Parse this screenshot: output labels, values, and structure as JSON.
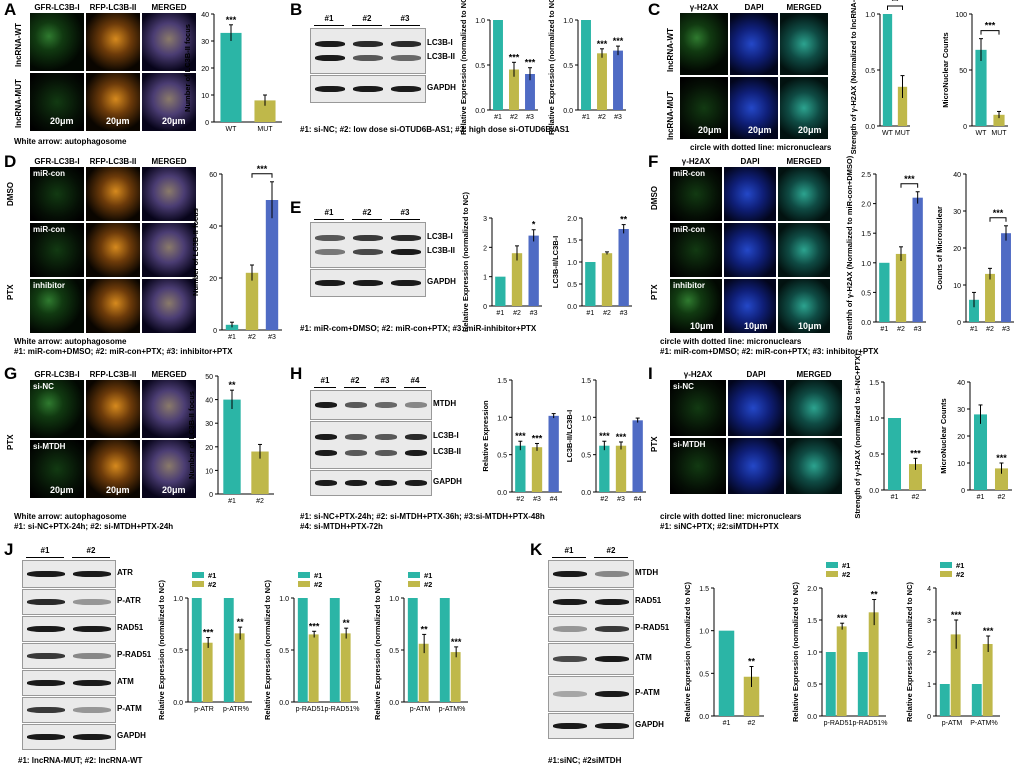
{
  "colors": {
    "teal": "#2bb5a6",
    "olive": "#bfb84a",
    "blue": "#4f6bc4",
    "axis": "#000"
  },
  "panels": {
    "A": {
      "letter": "A",
      "headers": [
        "GFR-LC3B-I",
        "RFP-LC3B-II",
        "MERGED"
      ],
      "rows": [
        "lncRNA-WT",
        "lncRNA-MUT"
      ],
      "scale": "20μm",
      "caption": "White arrow: autophagosome"
    },
    "B": {
      "letter": "B",
      "lanes": [
        "#1",
        "#2",
        "#3"
      ],
      "bands": [
        "LC3B-I",
        "LC3B-II",
        "GAPDH"
      ],
      "caption": "#1: si-NC; #2: low dose si-OTUD6B-AS1; #3: high dose si-OTUD6B-AS1"
    },
    "C": {
      "letter": "C",
      "headers": [
        "γ-H2AX",
        "DAPI",
        "MERGED"
      ],
      "rows": [
        "lncRNA-WT",
        "lncRNA-MUT"
      ],
      "scale": "20μm",
      "caption": "circle with dotted line: micronuclears"
    },
    "D": {
      "letter": "D",
      "headers": [
        "GFR-LC3B-I",
        "RFP-LC3B-II",
        "MERGED"
      ],
      "groups": [
        "DMSO",
        "PTX"
      ],
      "rows": [
        "miR-con",
        "miR-con",
        "inhibitor"
      ],
      "caption1": "White arrow: autophagosome",
      "caption2": "#1: miR-com+DMSO; #2: miR-con+PTX; #3: inhibitor+PTX"
    },
    "E": {
      "letter": "E",
      "lanes": [
        "#1",
        "#2",
        "#3"
      ],
      "bands": [
        "LC3B-I",
        "LC3B-II",
        "GAPDH"
      ],
      "caption": "#1: miR-com+DMSO; #2: miR-con+PTX; #3: miR-inhibitor+PTX"
    },
    "F": {
      "letter": "F",
      "headers": [
        "γ-H2AX",
        "DAPI",
        "MERGED"
      ],
      "groups": [
        "DMSO",
        "PTX"
      ],
      "rows": [
        "miR-con",
        "miR-con",
        "inhibitor"
      ],
      "scale": "10μm",
      "caption1": "circle with dotted line: micronuclears",
      "caption2": "#1: miR-com+DMSO; #2: miR-con+PTX; #3: inhibitor+PTX"
    },
    "G": {
      "letter": "G",
      "headers": [
        "GFR-LC3B-I",
        "RFP-LC3B-II",
        "MERGED"
      ],
      "group": "PTX",
      "rows": [
        "si-NC",
        "si-MTDH"
      ],
      "scale": "20μm",
      "caption1": "White arrow: autophagosome",
      "caption2": "#1: si-NC+PTX-24h; #2: si-MTDH+PTX-24h"
    },
    "H": {
      "letter": "H",
      "lanes": [
        "#1",
        "#2",
        "#3",
        "#4"
      ],
      "bands": [
        "MTDH",
        "LC3B-I",
        "LC3B-II",
        "GAPDH"
      ],
      "caption1": "#1: si-NC+PTX-24h; #2: si-MTDH+PTX-36h; #3:si-MTDH+PTX-48h",
      "caption2": "#4: si-MTDH+PTX-72h"
    },
    "I": {
      "letter": "I",
      "headers": [
        "γ-H2AX",
        "DAPI",
        "MERGED"
      ],
      "group": "PTX",
      "rows": [
        "si-NC",
        "si-MTDH"
      ],
      "caption1": "circle with dotted line: micronuclears",
      "caption2": "#1: siNC+PTX; #2:siMTDH+PTX"
    },
    "J": {
      "letter": "J",
      "lanes": [
        "#1",
        "#2"
      ],
      "bands": [
        "ATR",
        "P-ATR",
        "RAD51",
        "P-RAD51",
        "ATM",
        "P-ATM",
        "GAPDH"
      ],
      "caption": "#1: lncRNA-MUT; #2: lncRNA-WT"
    },
    "K": {
      "letter": "K",
      "lanes": [
        "#1",
        "#2"
      ],
      "bands": [
        "MTDH",
        "RAD51",
        "P-RAD51",
        "ATM",
        "P-ATM",
        "GAPDH"
      ],
      "caption": "#1:siNC; #2siMTDH"
    }
  },
  "chart_data": [
    {
      "id": "A1",
      "type": "bar",
      "categories": [
        "WT",
        "MUT"
      ],
      "values": [
        33,
        8
      ],
      "errors": [
        3,
        2
      ],
      "ylabel": "Number of LC3B-II focus",
      "ylim": [
        0,
        40
      ],
      "yticks": [
        0,
        10,
        20,
        30,
        40
      ],
      "sig": [
        {
          "text": "***",
          "over": 0
        }
      ]
    },
    {
      "id": "B1",
      "type": "bar",
      "categories": [
        "#1",
        "#2",
        "#3"
      ],
      "values": [
        1.0,
        0.45,
        0.4
      ],
      "errors": [
        0,
        0.08,
        0.07
      ],
      "ylabel": "Relative Expression (normalized to NC)",
      "ylim": [
        0,
        1.0
      ],
      "yticks": [
        0.0,
        0.5,
        1.0
      ],
      "sig": [
        {
          "text": "***",
          "over": 1
        },
        {
          "text": "***",
          "over": 2
        }
      ]
    },
    {
      "id": "B2",
      "type": "bar",
      "categories": [
        "#1",
        "#2",
        "#3"
      ],
      "values": [
        1.0,
        0.63,
        0.66
      ],
      "errors": [
        0,
        0.05,
        0.05
      ],
      "ylabel": "Relative Expression (normalized to NC)",
      "ylim": [
        0,
        1.0
      ],
      "yticks": [
        0.0,
        0.5,
        1.0
      ],
      "sig": [
        {
          "text": "***",
          "over": 1
        },
        {
          "text": "***",
          "over": 2
        }
      ]
    },
    {
      "id": "C1",
      "type": "bar",
      "categories": [
        "WT",
        "MUT"
      ],
      "values": [
        1.0,
        0.35
      ],
      "errors": [
        0,
        0.1
      ],
      "ylabel": "Strength of γ-H2AX (Normalized to lncRNA-WT)",
      "ylim": [
        0,
        1.0
      ],
      "yticks": [
        0.0,
        0.5,
        1.0
      ],
      "sig": [
        {
          "text": "**",
          "bracket": true
        }
      ]
    },
    {
      "id": "C2",
      "type": "bar",
      "categories": [
        "WT",
        "MUT"
      ],
      "values": [
        68,
        10
      ],
      "errors": [
        10,
        3
      ],
      "ylabel": "MicroNuclear Counts",
      "ylim": [
        0,
        100
      ],
      "yticks": [
        0,
        50,
        100
      ],
      "sig": [
        {
          "text": "***",
          "bracket": true
        }
      ]
    },
    {
      "id": "D1",
      "type": "bar",
      "categories": [
        "#1",
        "#2",
        "#3"
      ],
      "values": [
        2,
        22,
        50
      ],
      "errors": [
        1,
        3,
        7
      ],
      "ylabel": "Number of LC3B-II focus",
      "ylim": [
        0,
        60
      ],
      "yticks": [
        0,
        20,
        40,
        60
      ],
      "sig": [
        {
          "text": "***",
          "bracket": true,
          "from": 1,
          "to": 2
        }
      ]
    },
    {
      "id": "E1",
      "type": "bar",
      "categories": [
        "#1",
        "#2",
        "#3"
      ],
      "values": [
        1.0,
        1.8,
        2.4
      ],
      "errors": [
        0,
        0.25,
        0.2
      ],
      "ylabel": "Relative Expression (normalized to NC)",
      "ylim": [
        0,
        3
      ],
      "yticks": [
        0,
        1,
        2,
        3
      ],
      "sig": [
        {
          "text": "*",
          "over": 2
        }
      ]
    },
    {
      "id": "E2",
      "type": "bar",
      "categories": [
        "#1",
        "#2",
        "#3"
      ],
      "values": [
        1.0,
        1.2,
        1.75
      ],
      "errors": [
        0,
        0.03,
        0.1
      ],
      "ylabel": "LC3B-II/LC3B-I",
      "ylim": [
        0,
        2.0
      ],
      "yticks": [
        0.0,
        0.5,
        1.0,
        1.5,
        2.0
      ],
      "sig": [
        {
          "text": "**",
          "over": 2
        }
      ]
    },
    {
      "id": "F1",
      "type": "bar",
      "categories": [
        "#1",
        "#2",
        "#3"
      ],
      "values": [
        1.0,
        1.15,
        2.1
      ],
      "errors": [
        0,
        0.12,
        0.1
      ],
      "ylabel": "Strenthh of γ-H2AX (Normalized to miR-con+DMSO)",
      "ylim": [
        0,
        2.5
      ],
      "yticks": [
        0.0,
        0.5,
        1.0,
        1.5,
        2.0,
        2.5
      ],
      "sig": [
        {
          "text": "***",
          "bracket": true,
          "from": 1,
          "to": 2
        }
      ]
    },
    {
      "id": "F2",
      "type": "bar",
      "categories": [
        "#1",
        "#2",
        "#3"
      ],
      "values": [
        6,
        13,
        24
      ],
      "errors": [
        2,
        1.5,
        2
      ],
      "ylabel": "Counts of Micronuclear",
      "ylim": [
        0,
        40
      ],
      "yticks": [
        0,
        10,
        20,
        30,
        40
      ],
      "sig": [
        {
          "text": "***",
          "bracket": true,
          "from": 1,
          "to": 2
        }
      ]
    },
    {
      "id": "G1",
      "type": "bar",
      "categories": [
        "#1",
        "#2"
      ],
      "values": [
        40,
        18
      ],
      "errors": [
        4,
        3
      ],
      "ylabel": "Number of LC3B-II focus",
      "ylim": [
        0,
        50
      ],
      "yticks": [
        0,
        10,
        20,
        30,
        40,
        50
      ],
      "sig": [
        {
          "text": "**",
          "over": 0
        }
      ]
    },
    {
      "id": "H1",
      "type": "bar",
      "categories": [
        "#2",
        "#3",
        "#4"
      ],
      "values": [
        0.62,
        0.6,
        1.02
      ],
      "errors": [
        0.06,
        0.05,
        0.03
      ],
      "ylabel": "Relative Expression",
      "ylim": [
        0,
        1.5
      ],
      "yticks": [
        0.0,
        0.5,
        1.0,
        1.5
      ],
      "sig": [
        {
          "text": "***",
          "over": 0
        },
        {
          "text": "***",
          "over": 1
        }
      ]
    },
    {
      "id": "H2",
      "type": "bar",
      "categories": [
        "#2",
        "#3",
        "#4"
      ],
      "values": [
        0.62,
        0.62,
        0.96
      ],
      "errors": [
        0.06,
        0.05,
        0.03
      ],
      "ylabel": "LC3B-II/LC3B-I",
      "ylim": [
        0,
        1.5
      ],
      "yticks": [
        0.0,
        0.5,
        1.0,
        1.5
      ],
      "sig": [
        {
          "text": "***",
          "over": 0
        },
        {
          "text": "***",
          "over": 1
        }
      ]
    },
    {
      "id": "I1",
      "type": "bar",
      "categories": [
        "#1",
        "#2"
      ],
      "values": [
        1.0,
        0.36
      ],
      "errors": [
        0,
        0.08
      ],
      "ylabel": "Strength of γ-H2AX (normalized to si-NC+PTX)",
      "ylim": [
        0,
        1.5
      ],
      "yticks": [
        0.0,
        0.5,
        1.0,
        1.5
      ],
      "sig": [
        {
          "text": "***",
          "over": 1
        }
      ]
    },
    {
      "id": "I2",
      "type": "bar",
      "categories": [
        "#1",
        "#2"
      ],
      "values": [
        28,
        8
      ],
      "errors": [
        3.5,
        2
      ],
      "ylabel": "MicroNuclear Counts",
      "ylim": [
        0,
        40
      ],
      "yticks": [
        0,
        10,
        20,
        30,
        40
      ],
      "sig": [
        {
          "text": "***",
          "over": 1
        }
      ]
    },
    {
      "id": "J1",
      "type": "bar",
      "categories": [
        "p-ATR",
        "p-ATR%"
      ],
      "series": [
        {
          "name": "#1",
          "values": [
            1.0,
            1.0
          ]
        },
        {
          "name": "#2",
          "values": [
            0.57,
            0.66
          ],
          "errors": [
            0.05,
            0.06
          ]
        }
      ],
      "ylabel": "Relative Expression (normalized to NC)",
      "ylim": [
        0,
        1.0
      ],
      "yticks": [
        0.0,
        0.5,
        1.0
      ],
      "sig": [
        {
          "text": "***",
          "over": 0
        },
        {
          "text": "**",
          "over": 1
        }
      ]
    },
    {
      "id": "J2",
      "type": "bar",
      "categories": [
        "p-RAD51",
        "p-RAD51%"
      ],
      "series": [
        {
          "name": "#1",
          "values": [
            1.0,
            1.0
          ]
        },
        {
          "name": "#2",
          "values": [
            0.65,
            0.66
          ],
          "errors": [
            0.03,
            0.05
          ]
        }
      ],
      "ylabel": "Relative Expression (normalized to NC)",
      "ylim": [
        0,
        1.0
      ],
      "yticks": [
        0.0,
        0.5,
        1.0
      ],
      "sig": [
        {
          "text": "***",
          "over": 0
        },
        {
          "text": "**",
          "over": 1
        }
      ]
    },
    {
      "id": "J3",
      "type": "bar",
      "categories": [
        "p-ATM",
        "p-ATM%"
      ],
      "series": [
        {
          "name": "#1",
          "values": [
            1.0,
            1.0
          ]
        },
        {
          "name": "#2",
          "values": [
            0.56,
            0.48
          ],
          "errors": [
            0.09,
            0.05
          ]
        }
      ],
      "ylabel": "Relative Expression (normalized to NC)",
      "ylim": [
        0,
        1.0
      ],
      "yticks": [
        0.0,
        0.5,
        1.0
      ],
      "sig": [
        {
          "text": "**",
          "over": 0
        },
        {
          "text": "***",
          "over": 1
        }
      ]
    },
    {
      "id": "K1",
      "type": "bar",
      "categories": [
        "#1",
        "#2"
      ],
      "values": [
        1.0,
        0.46
      ],
      "errors": [
        0,
        0.12
      ],
      "ylabel": "Relative Expression (normalized to NC)",
      "ylim": [
        0,
        1.5
      ],
      "yticks": [
        0.0,
        0.5,
        1.0,
        1.5
      ],
      "sig": [
        {
          "text": "**",
          "over": 1
        }
      ]
    },
    {
      "id": "K2",
      "type": "bar",
      "categories": [
        "p-RAD51",
        "p-RAD51%"
      ],
      "series": [
        {
          "name": "#1",
          "values": [
            1.0,
            1.0
          ]
        },
        {
          "name": "#2",
          "values": [
            1.4,
            1.62
          ],
          "errors": [
            0.05,
            0.2
          ]
        }
      ],
      "ylabel": "Relative Expression (normalized to NC)",
      "ylim": [
        0,
        2.0
      ],
      "yticks": [
        0.0,
        0.5,
        1.0,
        1.5,
        2.0
      ],
      "sig": [
        {
          "text": "***",
          "over": 0
        },
        {
          "text": "**",
          "over": 1
        }
      ]
    },
    {
      "id": "K3",
      "type": "bar",
      "categories": [
        "p-ATM",
        "P-ATM%"
      ],
      "series": [
        {
          "name": "#1",
          "values": [
            1.0,
            1.0
          ]
        },
        {
          "name": "#2",
          "values": [
            2.55,
            2.25
          ],
          "errors": [
            0.45,
            0.25
          ]
        }
      ],
      "ylabel": "Relative Expression (normalized to NC)",
      "ylim": [
        0,
        4
      ],
      "yticks": [
        0,
        1,
        2,
        3,
        4
      ],
      "sig": [
        {
          "text": "***",
          "over": 0
        },
        {
          "text": "***",
          "over": 1
        }
      ]
    }
  ]
}
